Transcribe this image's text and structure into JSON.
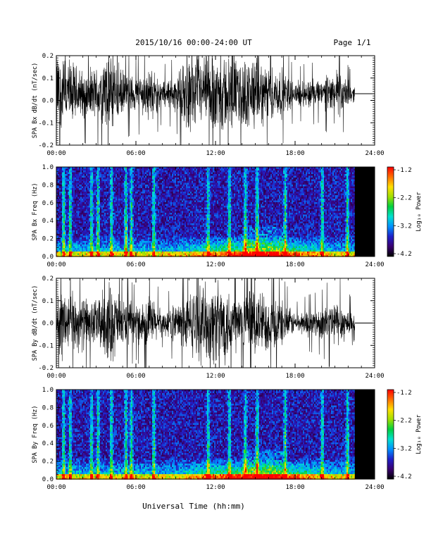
{
  "header": {
    "title": "2015/10/16  00:00-24:00 UT",
    "page": "Page 1/1"
  },
  "footer": {
    "xlabel": "Universal Time (hh:mm)"
  },
  "time_ticks": [
    "00:00",
    "06:00",
    "12:00",
    "18:00",
    "24:00"
  ],
  "colorbar": {
    "label": "Log₁₀ Power",
    "ticks": [
      "-1.2",
      "-2.2",
      "-3.2",
      "-4.2"
    ],
    "range": [
      -4.2,
      -1.2
    ],
    "colors": [
      "#000000",
      "#3a0070",
      "#2020c8",
      "#0090ff",
      "#00e0d0",
      "#00d040",
      "#a0e000",
      "#ffe000",
      "#ff7000",
      "#ff0000"
    ]
  },
  "chart_data": [
    {
      "id": "bx-waveform",
      "type": "line",
      "ylabel": "SPA Bx dB/dt (nT/sec)",
      "ylim": [
        -0.2,
        0.2
      ],
      "yticks": [
        "0.2",
        "0.1",
        "0.0",
        "-0.1",
        "-0.2"
      ],
      "xlim_hours": [
        0,
        24
      ],
      "data_end_hour": 22.5,
      "baseline": 0.03,
      "activity_envelope": {
        "hours": [
          0,
          1,
          2,
          3,
          4,
          5,
          6,
          7,
          8,
          9,
          10,
          11,
          12,
          13,
          14,
          15,
          16,
          17,
          18,
          19,
          20,
          21,
          22,
          22.5
        ],
        "amplitude": [
          0.22,
          0.18,
          0.12,
          0.14,
          0.24,
          0.12,
          0.09,
          0.14,
          0.07,
          0.09,
          0.2,
          0.18,
          0.22,
          0.2,
          0.18,
          0.2,
          0.14,
          0.13,
          0.06,
          0.08,
          0.07,
          0.14,
          0.07,
          0.04
        ]
      }
    },
    {
      "id": "bx-spectrogram",
      "type": "heatmap",
      "ylabel": "SPA Bx Freq (Hz)",
      "ylim": [
        0,
        1.0
      ],
      "yticks": [
        "1.0",
        "0.8",
        "0.6",
        "0.4",
        "0.2",
        "0.0"
      ],
      "xlim_hours": [
        0,
        24
      ],
      "data_end_hour": 22.5,
      "zlim": [
        -4.2,
        -1.2
      ],
      "broadband_bursts_hours": [
        0.5,
        1.0,
        2.6,
        3.1,
        4.1,
        5.2,
        5.6,
        7.3,
        11.4,
        13.0,
        14.2,
        15.1,
        17.2,
        20.0,
        21.9
      ]
    },
    {
      "id": "by-waveform",
      "type": "line",
      "ylabel": "SPA By dB/dt (nT/sec)",
      "ylim": [
        -0.2,
        0.2
      ],
      "yticks": [
        "0.2",
        "0.1",
        "0.0",
        "-0.1",
        "-0.2"
      ],
      "xlim_hours": [
        0,
        24
      ],
      "data_end_hour": 22.5,
      "baseline": 0.0,
      "activity_envelope": {
        "hours": [
          0,
          1,
          2,
          3,
          4,
          5,
          6,
          7,
          8,
          9,
          10,
          11,
          12,
          13,
          14,
          15,
          16,
          17,
          18,
          19,
          20,
          21,
          22,
          22.5
        ],
        "amplitude": [
          0.22,
          0.16,
          0.14,
          0.12,
          0.22,
          0.13,
          0.09,
          0.15,
          0.06,
          0.1,
          0.16,
          0.2,
          0.22,
          0.2,
          0.15,
          0.19,
          0.15,
          0.12,
          0.05,
          0.07,
          0.08,
          0.13,
          0.08,
          0.04
        ]
      }
    },
    {
      "id": "by-spectrogram",
      "type": "heatmap",
      "ylabel": "SPA By Freq (Hz)",
      "ylim": [
        0,
        1.0
      ],
      "yticks": [
        "1.0",
        "0.8",
        "0.6",
        "0.4",
        "0.2",
        "0.0"
      ],
      "xlim_hours": [
        0,
        24
      ],
      "data_end_hour": 22.5,
      "zlim": [
        -4.2,
        -1.2
      ],
      "broadband_bursts_hours": [
        0.5,
        1.0,
        2.6,
        3.1,
        4.1,
        5.2,
        5.6,
        7.3,
        11.4,
        13.0,
        14.2,
        15.1,
        17.2,
        20.0,
        21.9
      ]
    }
  ]
}
